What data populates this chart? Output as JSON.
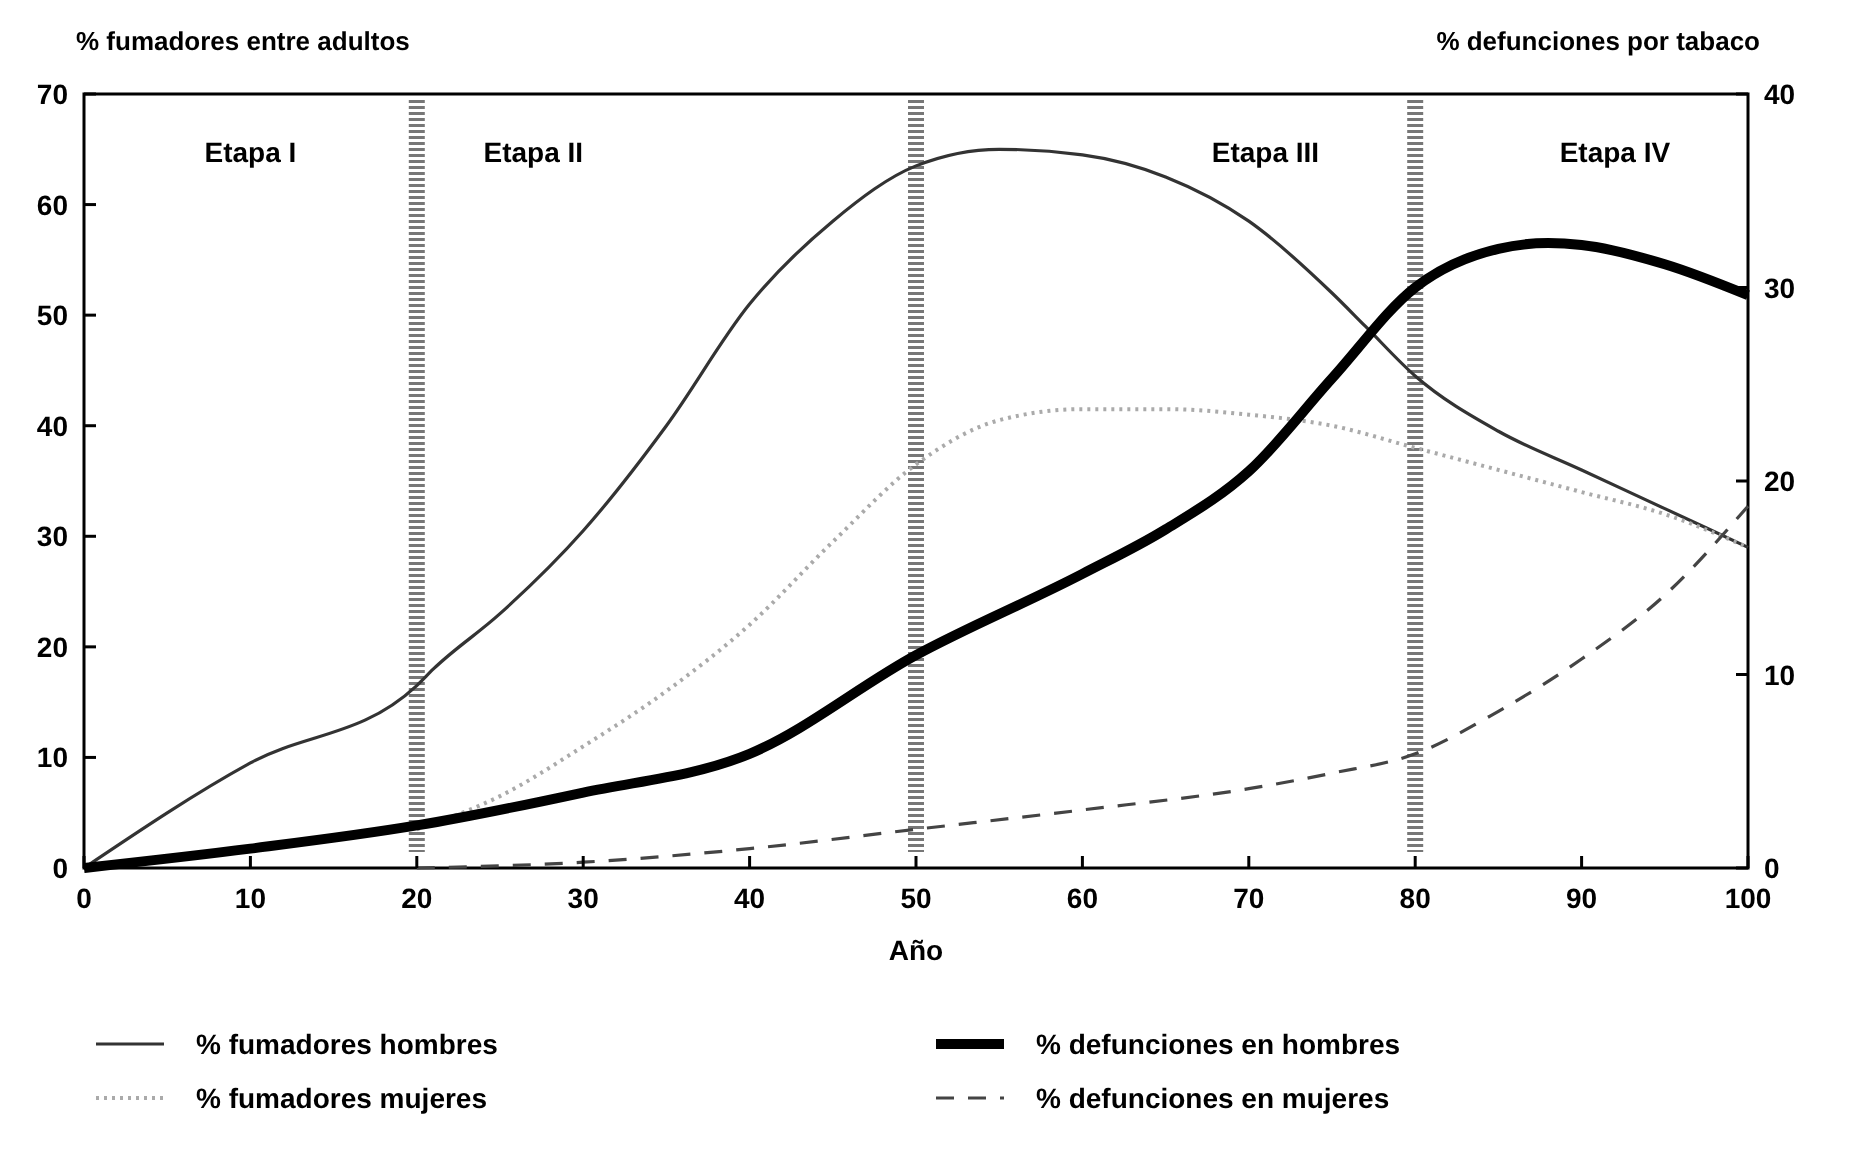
{
  "chart_data": {
    "type": "line",
    "xlabel": "Año",
    "ylabel": "% fumadores entre adultos",
    "y2label": "% defunciones por tabaco",
    "xlim": [
      0,
      100
    ],
    "xticks": [
      0,
      10,
      20,
      30,
      40,
      50,
      60,
      70,
      80,
      90,
      100
    ],
    "ylim": [
      0,
      70
    ],
    "yticks": [
      0,
      10,
      20,
      30,
      40,
      50,
      60,
      70
    ],
    "y2lim": [
      0,
      40
    ],
    "y2ticks": [
      0,
      10,
      20,
      30,
      40
    ],
    "grid": false,
    "legend": "bottom",
    "series": [
      {
        "name": "% fumadores hombres",
        "color": "#333333",
        "line_style": "solid",
        "x": [
          0,
          10,
          20,
          21,
          25,
          30,
          35,
          40,
          45,
          50,
          55,
          60,
          65,
          70,
          75,
          77,
          80,
          85,
          90,
          95,
          100
        ],
        "values": [
          0,
          9.5,
          16.5,
          18,
          23,
          30.5,
          40,
          51,
          58.5,
          63.5,
          65,
          64.5,
          62.5,
          58.5,
          52,
          49,
          44.5,
          39.5,
          36,
          32.5,
          29
        ]
      },
      {
        "name": "% fumadores mujeres",
        "color": "#aaaaaa",
        "line_style": "dotted",
        "x": [
          20,
          25,
          30,
          35,
          40,
          45,
          50,
          55,
          60,
          65,
          70,
          75,
          80,
          85,
          90,
          95,
          100
        ],
        "values": [
          3.5,
          6.5,
          11,
          16,
          22,
          29.5,
          36.5,
          40.5,
          41.5,
          41.5,
          41,
          40,
          38,
          36,
          34,
          32,
          29
        ]
      },
      {
        "name": "% defunciones en hombres",
        "color": "#000000",
        "line_style": "solid",
        "axis": "y2",
        "x": [
          0,
          10,
          20,
          30,
          40,
          50,
          60,
          65,
          70,
          75,
          80,
          85,
          88,
          90,
          95,
          100
        ],
        "values": [
          0,
          1,
          2.2,
          3.9,
          5.9,
          11,
          15.2,
          17.5,
          20.5,
          25.3,
          30,
          32,
          32.3,
          32.2,
          31.2,
          29.6
        ]
      },
      {
        "name": "% defunciones en mujeres",
        "color": "#444444",
        "line_style": "dashed",
        "axis": "y2",
        "x": [
          20,
          30,
          40,
          50,
          60,
          70,
          75,
          80,
          85,
          90,
          95,
          100
        ],
        "values": [
          0,
          0.3,
          1,
          2,
          3,
          4.1,
          4.9,
          5.9,
          8.1,
          10.8,
          14.1,
          18.7
        ]
      }
    ],
    "ref_lines": [
      {
        "axis": "x",
        "value": 20
      },
      {
        "axis": "x",
        "value": 50
      },
      {
        "axis": "x",
        "value": 80
      }
    ],
    "annotations": [
      "Etapa I",
      "Etapa II",
      "Etapa III",
      "Etapa IV"
    ]
  }
}
